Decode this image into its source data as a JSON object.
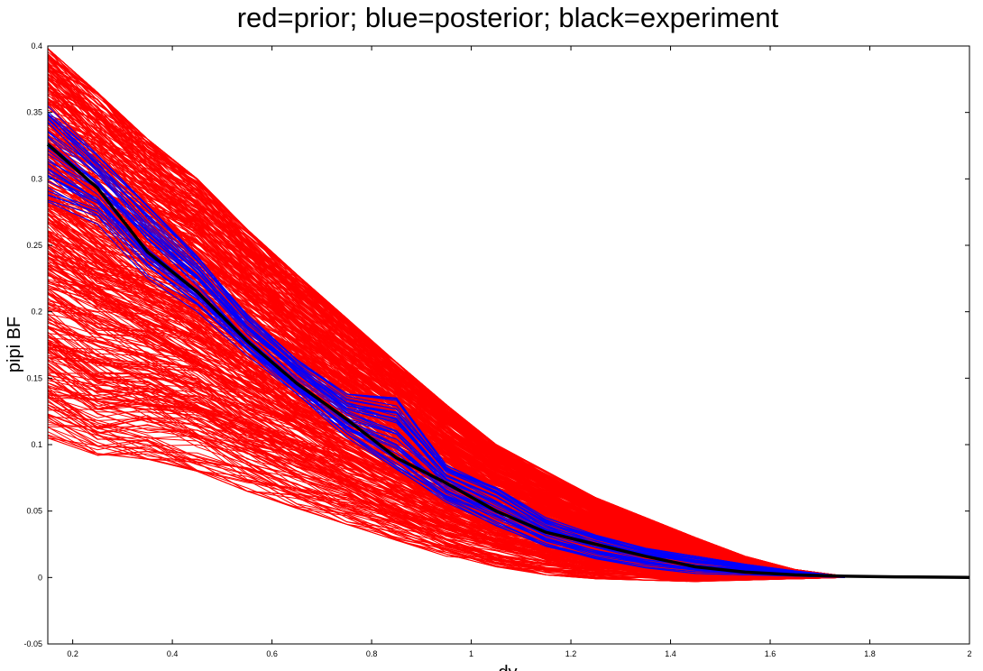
{
  "chart_data": {
    "type": "line",
    "title": "red=prior; blue=posterior; black=experiment",
    "xlabel": "dy",
    "ylabel": "pipi BF",
    "xlim": [
      0.15,
      2.0
    ],
    "ylim": [
      -0.05,
      0.4
    ],
    "x_ticks": [
      "0.2",
      "0.4",
      "0.6",
      "0.8",
      "1",
      "1.2",
      "1.4",
      "1.6",
      "1.8",
      "2"
    ],
    "y_ticks": [
      "-0.05",
      "0",
      "0.05",
      "0.1",
      "0.15",
      "0.2",
      "0.25",
      "0.3",
      "0.35",
      "0.4"
    ],
    "grid": false,
    "legend": "none",
    "colors": {
      "prior": "#ff0000",
      "posterior": "#0000ff",
      "experiment": "#000000"
    },
    "prior_band": {
      "x": [
        0.15,
        0.25,
        0.35,
        0.45,
        0.55,
        0.65,
        0.75,
        0.85,
        0.95,
        1.05,
        1.15,
        1.25,
        1.35,
        1.45,
        1.55,
        1.65,
        1.75
      ],
      "lower": [
        0.105,
        0.092,
        0.089,
        0.08,
        0.065,
        0.052,
        0.04,
        0.028,
        0.016,
        0.008,
        0.002,
        -0.001,
        -0.002,
        -0.003,
        -0.002,
        -0.001,
        0.0
      ],
      "upper": [
        0.398,
        0.365,
        0.33,
        0.3,
        0.262,
        0.228,
        0.195,
        0.162,
        0.13,
        0.1,
        0.08,
        0.06,
        0.045,
        0.03,
        0.016,
        0.006,
        0.001
      ],
      "count": 500
    },
    "posterior_band": {
      "x": [
        0.15,
        0.25,
        0.35,
        0.45,
        0.55,
        0.65,
        0.75,
        0.85,
        0.95,
        1.05,
        1.15,
        1.25,
        1.35,
        1.45,
        1.55,
        1.65,
        1.75
      ],
      "lower": [
        0.28,
        0.265,
        0.225,
        0.2,
        0.165,
        0.135,
        0.102,
        0.075,
        0.055,
        0.038,
        0.022,
        0.013,
        0.007,
        0.003,
        0.002,
        0.001,
        0.0
      ],
      "upper": [
        0.355,
        0.318,
        0.28,
        0.242,
        0.198,
        0.164,
        0.138,
        0.135,
        0.085,
        0.068,
        0.045,
        0.032,
        0.022,
        0.016,
        0.01,
        0.005,
        0.001
      ],
      "count": 40
    },
    "series": [
      {
        "name": "experiment",
        "x": [
          0.15,
          0.25,
          0.35,
          0.45,
          0.55,
          0.65,
          0.75,
          0.85,
          0.95,
          1.05,
          1.15,
          1.25,
          1.35,
          1.45,
          1.55,
          1.65,
          1.75,
          1.85,
          1.95,
          2.0
        ],
        "values": [
          0.326,
          0.293,
          0.245,
          0.215,
          0.178,
          0.146,
          0.119,
          0.09,
          0.071,
          0.05,
          0.034,
          0.025,
          0.016,
          0.008,
          0.004,
          0.002,
          0.001,
          0.0005,
          0.0002,
          0.0
        ]
      }
    ]
  }
}
